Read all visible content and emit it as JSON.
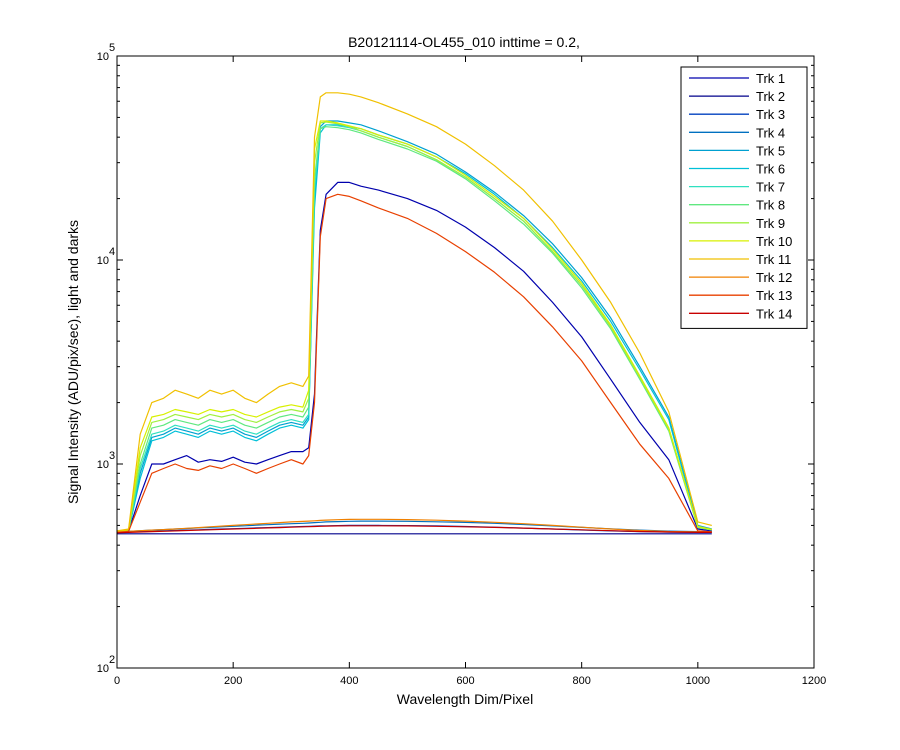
{
  "chart_data": {
    "type": "line",
    "title": "B20121114-OL455_010 inttime = 0.2,",
    "xlabel": "Wavelength Dim/Pixel",
    "ylabel": "Signal Intensity (ADU/pix/sec), light and darks",
    "xlim": [
      0,
      1200
    ],
    "ylim": [
      100,
      100000
    ],
    "yscale": "log",
    "grid": false,
    "legend_position": "top-right",
    "x_ticks": [
      "0",
      "200",
      "400",
      "600",
      "800",
      "1000",
      "1200"
    ],
    "y_ticks": [
      {
        "value": 100,
        "base": "10",
        "exp": "2"
      },
      {
        "value": 1000,
        "base": "10",
        "exp": "3"
      },
      {
        "value": 10000,
        "base": "10",
        "exp": "4"
      },
      {
        "value": 100000,
        "base": "10",
        "exp": "5"
      }
    ],
    "x": [
      0,
      20,
      40,
      60,
      80,
      100,
      120,
      140,
      160,
      180,
      200,
      220,
      240,
      260,
      280,
      300,
      320,
      330,
      340,
      350,
      360,
      380,
      400,
      420,
      450,
      500,
      550,
      600,
      650,
      700,
      750,
      800,
      850,
      900,
      950,
      1000,
      1024
    ],
    "series": [
      {
        "name": "Trk 1",
        "color": "#0000ad",
        "values": [
          460,
          470,
          700,
          1000,
          1000,
          1050,
          1100,
          1020,
          1050,
          1030,
          1080,
          1020,
          1000,
          1050,
          1100,
          1150,
          1150,
          1200,
          2200,
          14000,
          21000,
          24000,
          24000,
          23000,
          22000,
          20000,
          17500,
          14500,
          11500,
          8800,
          6200,
          4200,
          2600,
          1600,
          1050,
          480,
          470
        ]
      },
      {
        "name": "Trk 2",
        "color": "#00008b",
        "values": [
          455,
          455,
          455,
          455,
          455,
          455,
          455,
          455,
          455,
          455,
          455,
          455,
          455,
          455,
          455,
          455,
          455,
          455,
          455,
          455,
          455,
          455,
          455,
          455,
          455,
          455,
          455,
          455,
          455,
          455,
          455,
          455,
          455,
          455,
          455,
          455,
          455
        ]
      },
      {
        "name": "Trk 3",
        "color": "#0040bf",
        "values": [
          462,
          464,
          466,
          468,
          470,
          472,
          474,
          476,
          478,
          480,
          482,
          484,
          486,
          488,
          490,
          492,
          494,
          495,
          496,
          497,
          498,
          499,
          500,
          500,
          500,
          499,
          497,
          494,
          490,
          485,
          480,
          475,
          470,
          466,
          463,
          462,
          462
        ]
      },
      {
        "name": "Trk 4",
        "color": "#0070c0",
        "values": [
          465,
          468,
          471,
          474,
          477,
          480,
          483,
          486,
          489,
          492,
          495,
          498,
          501,
          504,
          507,
          510,
          512,
          514,
          516,
          518,
          520,
          522,
          524,
          525,
          525,
          524,
          521,
          517,
          512,
          505,
          497,
          489,
          481,
          474,
          469,
          466,
          466
        ]
      },
      {
        "name": "Trk 5",
        "color": "#00a0d0",
        "values": [
          460,
          470,
          900,
          1350,
          1400,
          1500,
          1450,
          1400,
          1500,
          1450,
          1500,
          1400,
          1350,
          1450,
          1550,
          1600,
          1550,
          1700,
          20000,
          45000,
          48000,
          48000,
          47000,
          46000,
          43000,
          38000,
          33000,
          27000,
          21500,
          16500,
          12000,
          8200,
          5200,
          3000,
          1700,
          500,
          480
        ]
      },
      {
        "name": "Trk 6",
        "color": "#00c0d8",
        "values": [
          460,
          470,
          850,
          1300,
          1350,
          1450,
          1400,
          1350,
          1450,
          1400,
          1450,
          1350,
          1300,
          1400,
          1500,
          1550,
          1500,
          1650,
          18000,
          42000,
          46000,
          46000,
          45000,
          44000,
          41000,
          37000,
          32000,
          26500,
          21000,
          16000,
          11500,
          7900,
          5000,
          2900,
          1650,
          495,
          478
        ]
      },
      {
        "name": "Trk 7",
        "color": "#30e0c0",
        "values": [
          460,
          470,
          950,
          1400,
          1450,
          1550,
          1500,
          1450,
          1550,
          1500,
          1550,
          1450,
          1400,
          1500,
          1600,
          1650,
          1600,
          1750,
          22000,
          44000,
          46000,
          45500,
          44500,
          43000,
          40000,
          36000,
          31000,
          25500,
          20000,
          15500,
          11000,
          7500,
          4800,
          2700,
          1500,
          490,
          476
        ]
      },
      {
        "name": "Trk 8",
        "color": "#60e880",
        "values": [
          462,
          472,
          1000,
          1500,
          1550,
          1650,
          1600,
          1550,
          1650,
          1600,
          1650,
          1550,
          1500,
          1600,
          1700,
          1750,
          1700,
          1900,
          25000,
          44000,
          45000,
          44500,
          43500,
          42000,
          39000,
          35000,
          30500,
          25000,
          19500,
          15000,
          10800,
          7300,
          4600,
          2600,
          1450,
          488,
          475
        ]
      },
      {
        "name": "Trk 9",
        "color": "#a0f040",
        "values": [
          462,
          472,
          1100,
          1600,
          1650,
          1750,
          1700,
          1650,
          1750,
          1700,
          1750,
          1650,
          1600,
          1700,
          1800,
          1850,
          1800,
          2100,
          30000,
          47000,
          47500,
          46500,
          45000,
          43000,
          40000,
          36000,
          31000,
          25500,
          20000,
          15500,
          11000,
          7500,
          4700,
          2650,
          1480,
          490,
          476
        ]
      },
      {
        "name": "Trk 10",
        "color": "#d8f000",
        "values": [
          465,
          475,
          1200,
          1700,
          1750,
          1850,
          1800,
          1750,
          1850,
          1800,
          1850,
          1750,
          1700,
          1800,
          1900,
          1950,
          1900,
          2300,
          35000,
          48000,
          48000,
          47000,
          45500,
          44000,
          41000,
          37000,
          32000,
          26000,
          20500,
          16000,
          11300,
          7700,
          4800,
          2700,
          1500,
          495,
          478
        ]
      },
      {
        "name": "Trk 11",
        "color": "#f0c000",
        "values": [
          470,
          480,
          1400,
          2000,
          2100,
          2300,
          2200,
          2100,
          2300,
          2200,
          2300,
          2100,
          2000,
          2200,
          2400,
          2500,
          2400,
          2700,
          40000,
          63000,
          66000,
          66000,
          65000,
          63000,
          59000,
          52000,
          45000,
          37000,
          29000,
          22000,
          15500,
          10000,
          6200,
          3500,
          1800,
          520,
          500
        ]
      },
      {
        "name": "Trk 12",
        "color": "#f08000",
        "values": [
          465,
          468,
          471,
          474,
          477,
          480,
          484,
          488,
          492,
          496,
          500,
          504,
          508,
          512,
          516,
          520,
          523,
          525,
          527,
          529,
          531,
          533,
          535,
          536,
          536,
          534,
          530,
          525,
          518,
          510,
          500,
          490,
          480,
          472,
          467,
          465,
          465
        ]
      },
      {
        "name": "Trk 13",
        "color": "#e84000",
        "values": [
          460,
          468,
          650,
          900,
          950,
          1000,
          950,
          930,
          980,
          950,
          1000,
          950,
          900,
          950,
          1000,
          1050,
          1000,
          1100,
          2000,
          13000,
          20000,
          21000,
          20500,
          19500,
          18000,
          16000,
          13500,
          11000,
          8700,
          6600,
          4700,
          3200,
          2000,
          1250,
          850,
          470,
          465
        ]
      },
      {
        "name": "Trk 14",
        "color": "#c80000",
        "values": [
          460,
          462,
          464,
          466,
          468,
          470,
          472,
          474,
          476,
          478,
          480,
          482,
          484,
          486,
          488,
          490,
          492,
          493,
          494,
          495,
          496,
          497,
          498,
          498,
          498,
          497,
          495,
          492,
          489,
          485,
          480,
          476,
          471,
          467,
          464,
          462,
          462
        ]
      }
    ]
  }
}
